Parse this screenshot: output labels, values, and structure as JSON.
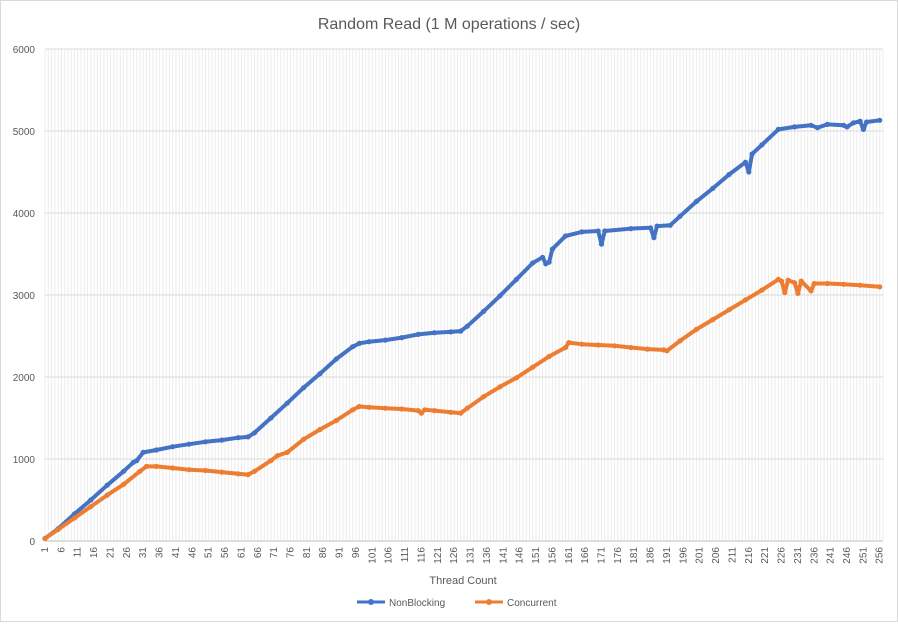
{
  "chart_data": {
    "type": "line",
    "title": "Random Read  (1 M operations / sec)",
    "xlabel": "Thread Count",
    "ylabel": "",
    "x_range": [
      1,
      257
    ],
    "ylim": [
      0,
      6000
    ],
    "y_ticks": [
      "0",
      "1000",
      "2000",
      "3000",
      "4000",
      "5000",
      "6000"
    ],
    "x_ticks": [
      "1",
      "6",
      "11",
      "16",
      "21",
      "26",
      "31",
      "36",
      "41",
      "46",
      "51",
      "56",
      "61",
      "66",
      "71",
      "76",
      "81",
      "86",
      "91",
      "96",
      "101",
      "106",
      "111",
      "116",
      "121",
      "126",
      "131",
      "136",
      "141",
      "146",
      "151",
      "156",
      "161",
      "166",
      "171",
      "176",
      "181",
      "186",
      "191",
      "196",
      "201",
      "206",
      "211",
      "216",
      "221",
      "226",
      "231",
      "236",
      "241",
      "246",
      "251",
      "256"
    ],
    "grid": "vertical and horizontal",
    "legend_position": "bottom",
    "series": [
      {
        "name": "NonBlocking",
        "color": "#4472C4",
        "points": [
          [
            1,
            30
          ],
          [
            5,
            150
          ],
          [
            10,
            330
          ],
          [
            15,
            500
          ],
          [
            20,
            680
          ],
          [
            25,
            850
          ],
          [
            28,
            960
          ],
          [
            29,
            980
          ],
          [
            31,
            1080
          ],
          [
            35,
            1110
          ],
          [
            40,
            1150
          ],
          [
            45,
            1180
          ],
          [
            50,
            1210
          ],
          [
            55,
            1230
          ],
          [
            60,
            1260
          ],
          [
            63,
            1270
          ],
          [
            65,
            1320
          ],
          [
            70,
            1500
          ],
          [
            75,
            1680
          ],
          [
            80,
            1870
          ],
          [
            85,
            2040
          ],
          [
            90,
            2220
          ],
          [
            95,
            2370
          ],
          [
            97,
            2410
          ],
          [
            100,
            2430
          ],
          [
            105,
            2450
          ],
          [
            110,
            2480
          ],
          [
            115,
            2520
          ],
          [
            120,
            2540
          ],
          [
            125,
            2550
          ],
          [
            128,
            2560
          ],
          [
            130,
            2620
          ],
          [
            135,
            2800
          ],
          [
            140,
            2990
          ],
          [
            145,
            3190
          ],
          [
            150,
            3390
          ],
          [
            153,
            3460
          ],
          [
            154,
            3380
          ],
          [
            155,
            3400
          ],
          [
            156,
            3560
          ],
          [
            160,
            3720
          ],
          [
            165,
            3770
          ],
          [
            170,
            3780
          ],
          [
            171,
            3620
          ],
          [
            172,
            3780
          ],
          [
            180,
            3810
          ],
          [
            186,
            3820
          ],
          [
            187,
            3700
          ],
          [
            188,
            3840
          ],
          [
            192,
            3850
          ],
          [
            195,
            3960
          ],
          [
            200,
            4140
          ],
          [
            205,
            4300
          ],
          [
            210,
            4470
          ],
          [
            215,
            4620
          ],
          [
            216,
            4500
          ],
          [
            217,
            4720
          ],
          [
            220,
            4830
          ],
          [
            225,
            5020
          ],
          [
            230,
            5050
          ],
          [
            235,
            5070
          ],
          [
            237,
            5040
          ],
          [
            240,
            5080
          ],
          [
            245,
            5070
          ],
          [
            246,
            5050
          ],
          [
            248,
            5100
          ],
          [
            250,
            5120
          ],
          [
            251,
            5020
          ],
          [
            252,
            5110
          ],
          [
            256,
            5130
          ]
        ]
      },
      {
        "name": "Concurrent",
        "color": "#ED7D31",
        "points": [
          [
            1,
            30
          ],
          [
            5,
            140
          ],
          [
            10,
            280
          ],
          [
            15,
            420
          ],
          [
            20,
            560
          ],
          [
            25,
            690
          ],
          [
            30,
            850
          ],
          [
            32,
            910
          ],
          [
            35,
            910
          ],
          [
            40,
            890
          ],
          [
            45,
            870
          ],
          [
            50,
            860
          ],
          [
            55,
            840
          ],
          [
            60,
            820
          ],
          [
            63,
            810
          ],
          [
            65,
            850
          ],
          [
            70,
            980
          ],
          [
            72,
            1040
          ],
          [
            75,
            1080
          ],
          [
            80,
            1240
          ],
          [
            85,
            1360
          ],
          [
            90,
            1470
          ],
          [
            95,
            1600
          ],
          [
            97,
            1640
          ],
          [
            100,
            1630
          ],
          [
            105,
            1620
          ],
          [
            110,
            1610
          ],
          [
            115,
            1590
          ],
          [
            116,
            1560
          ],
          [
            117,
            1600
          ],
          [
            120,
            1590
          ],
          [
            125,
            1570
          ],
          [
            128,
            1560
          ],
          [
            130,
            1620
          ],
          [
            135,
            1760
          ],
          [
            140,
            1880
          ],
          [
            145,
            1990
          ],
          [
            150,
            2120
          ],
          [
            155,
            2250
          ],
          [
            160,
            2360
          ],
          [
            161,
            2420
          ],
          [
            165,
            2400
          ],
          [
            170,
            2390
          ],
          [
            175,
            2380
          ],
          [
            180,
            2360
          ],
          [
            185,
            2340
          ],
          [
            190,
            2330
          ],
          [
            191,
            2320
          ],
          [
            195,
            2440
          ],
          [
            200,
            2580
          ],
          [
            205,
            2700
          ],
          [
            210,
            2820
          ],
          [
            215,
            2940
          ],
          [
            220,
            3060
          ],
          [
            225,
            3190
          ],
          [
            226,
            3170
          ],
          [
            227,
            3030
          ],
          [
            228,
            3180
          ],
          [
            230,
            3150
          ],
          [
            231,
            3020
          ],
          [
            232,
            3170
          ],
          [
            235,
            3050
          ],
          [
            236,
            3140
          ],
          [
            240,
            3140
          ],
          [
            245,
            3130
          ],
          [
            250,
            3120
          ],
          [
            256,
            3100
          ]
        ]
      }
    ]
  }
}
